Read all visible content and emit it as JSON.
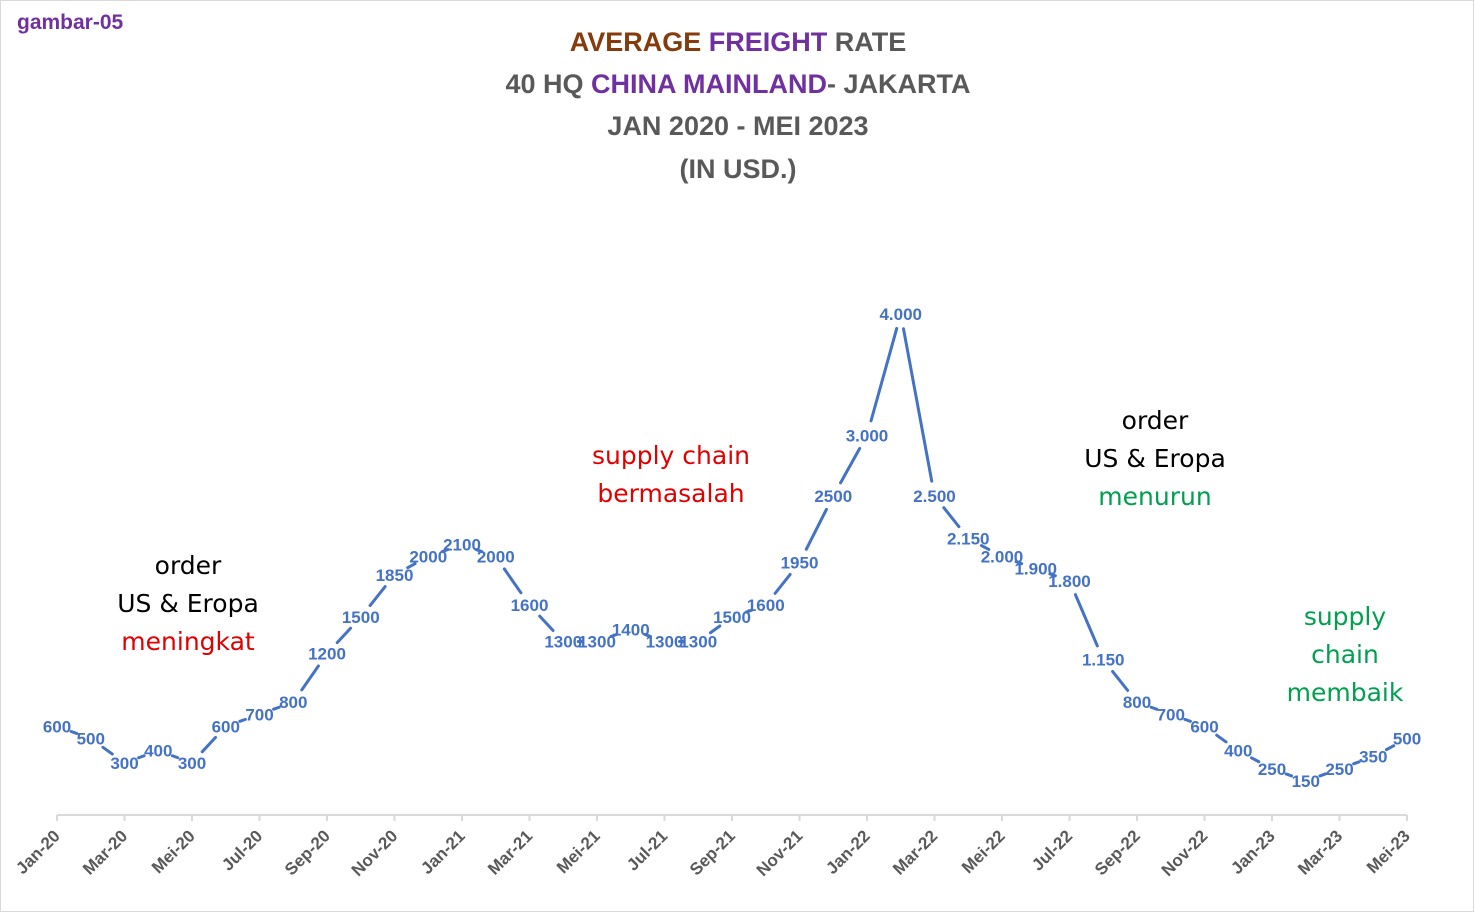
{
  "figure_label": "gambar-05",
  "title": {
    "line1": {
      "part1": "AVERAGE",
      "part2": "FREIGHT",
      "part3": "RATE"
    },
    "line2": {
      "part1": "40 HQ",
      "part2": "CHINA MAINLAND",
      "part3": "- JAKARTA"
    },
    "line3": "JAN 2020 - MEI 2023",
    "line4": "(IN USD.)"
  },
  "annotations": {
    "left": {
      "line1": "order",
      "line2": "US & Eropa",
      "line3": "meningkat"
    },
    "middle": {
      "line1": "supply chain",
      "line2": "bermasalah"
    },
    "right": {
      "line1": "order",
      "line2": "US & Eropa",
      "line3": "menurun"
    },
    "far_right": {
      "line1": "supply",
      "line2": "chain",
      "line3": "membaik"
    }
  },
  "colors": {
    "line": "#4472c4",
    "axis": "#d9d9d9",
    "title_grey": "#595959",
    "title_brown": "#843c0c",
    "title_purple": "#7030a0",
    "red": "#e00000",
    "green": "#00a050"
  },
  "chart_data": {
    "type": "line",
    "title": "AVERAGE FREIGHT RATE 40 HQ CHINA MAINLAND - JAKARTA JAN 2020 - MEI 2023 (IN USD.)",
    "xlabel": "",
    "ylabel": "",
    "grid": false,
    "legend": "none",
    "ylim": [
      0,
      4000
    ],
    "x_ticks": [
      "Jan-20",
      "Mar-20",
      "Mei-20",
      "Jul-20",
      "Sep-20",
      "Nov-20",
      "Jan-21",
      "Mar-21",
      "Mei-21",
      "Jul-21",
      "Sep-21",
      "Nov-21",
      "Jan-22",
      "Mar-22",
      "Mei-22",
      "Jul-22",
      "Sep-22",
      "Nov-22",
      "Jan-23",
      "Mar-23",
      "Mei-23"
    ],
    "values": [
      600,
      500,
      300,
      400,
      300,
      600,
      700,
      800,
      1200,
      1500,
      1850,
      2000,
      2100,
      2000,
      1600,
      1300,
      1300,
      1400,
      1300,
      1300,
      1500,
      1600,
      1950,
      2500,
      3000,
      4000,
      2500,
      2150,
      2000,
      1900,
      1800,
      1150,
      800,
      700,
      600,
      400,
      250,
      150,
      250,
      350,
      500
    ],
    "labels": [
      "600",
      "500",
      "300",
      "400",
      "300",
      "600",
      "700",
      "800",
      "1200",
      "1500",
      "1850",
      "2000",
      "2100",
      "2000",
      "1600",
      "1300",
      "1300",
      "1400",
      "1300",
      "1300",
      "1500",
      "1600",
      "1950",
      "2500",
      "3.000",
      "4.000",
      "2.500",
      "2.150",
      "2.000",
      "1.900",
      "1.800",
      "1.150",
      "800",
      "700",
      "600",
      "400",
      "250",
      "150",
      "250",
      "350",
      "500"
    ]
  }
}
